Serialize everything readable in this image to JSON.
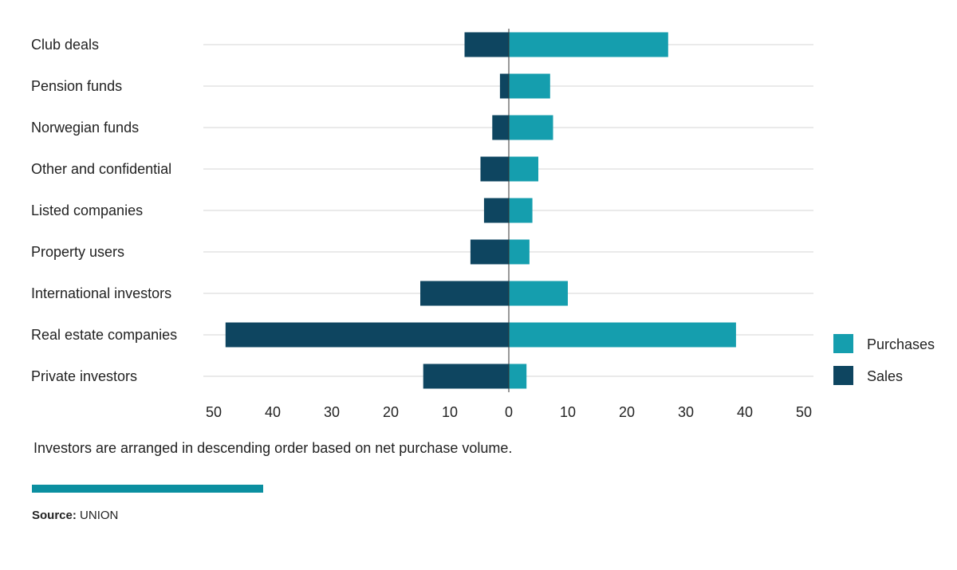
{
  "chart_data": {
    "type": "bar",
    "orientation": "horizontal-diverging",
    "categories": [
      "Club deals",
      "Pension funds",
      "Norwegian funds",
      "Other and confidential",
      "Listed companies",
      "Property users",
      "International investors",
      "Real estate companies",
      "Private investors"
    ],
    "series": [
      {
        "name": "Purchases",
        "color": "#159eae",
        "values": [
          27,
          7,
          7.5,
          5,
          4,
          3.5,
          10,
          38.5,
          3
        ]
      },
      {
        "name": "Sales",
        "color": "#0e4560",
        "values": [
          7.5,
          1.5,
          2.8,
          4.8,
          4.2,
          6.5,
          15,
          48,
          14.5
        ]
      }
    ],
    "xlim": [
      -50,
      50
    ],
    "x_tick_labels": [
      "50",
      "40",
      "30",
      "20",
      "10",
      "0",
      "10",
      "20",
      "30",
      "40",
      "50"
    ],
    "legend_position": "right",
    "grid": "horizontal"
  },
  "note": "Investors are arranged in descending order based on net purchase volume.",
  "source_label": "Source:",
  "source_value": " UNION",
  "accent_color": "#0b8fa0"
}
